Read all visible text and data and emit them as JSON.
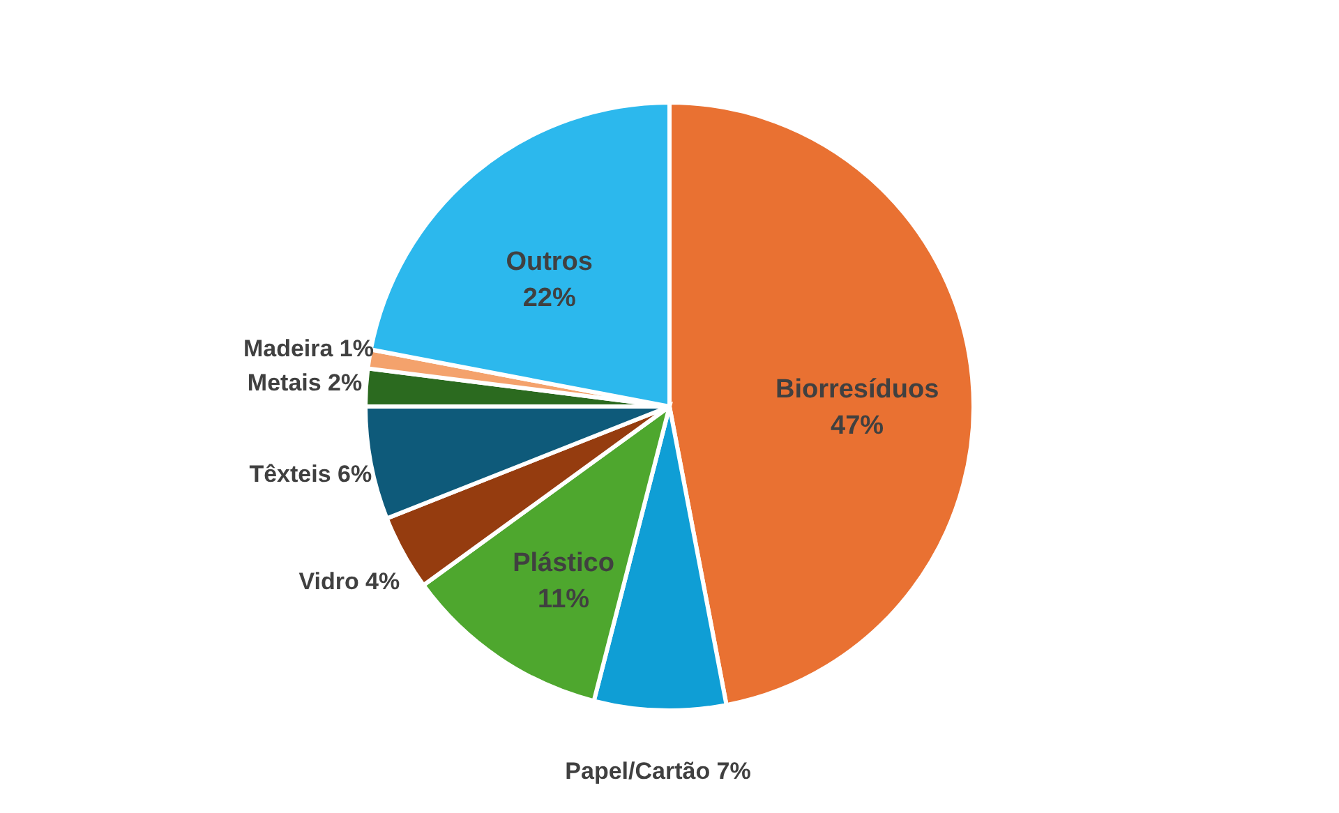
{
  "chart_data": {
    "type": "pie",
    "value_labels": [
      "47%",
      "7%",
      "11%",
      "4%",
      "6%",
      "2%",
      "1%",
      "22%"
    ],
    "categories": [
      "Biorresíduos",
      "Papel/Cartão",
      "Plástico",
      "Vidro",
      "Têxteis",
      "Metais",
      "Madeira",
      "Outros"
    ],
    "values": [
      47,
      7,
      11,
      4,
      6,
      2,
      1,
      22
    ],
    "colors": [
      "#e97132",
      "#0f9ed5",
      "#4ea72e",
      "#953c0f",
      "#0e5a7a",
      "#2b6a1f",
      "#f4a26c",
      "#2cb8ed"
    ]
  }
}
